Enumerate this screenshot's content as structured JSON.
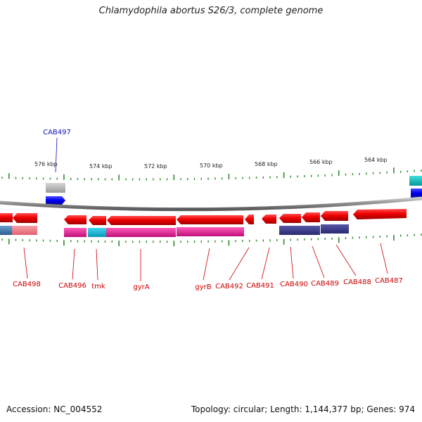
{
  "title": "Chlamydophila abortus S26/3, complete genome",
  "footer": {
    "accession": "Accession: NC_004552",
    "summary": "Topology: circular; Length: 1,144,377 bp; Genes: 974"
  },
  "colors": {
    "forward_gene": "#0000ee",
    "reverse_gene": "#ee0000",
    "backbone": "#888888",
    "tick": "#2e8b2e",
    "reverse_feature": "#e0209a",
    "forward_feature_dark": "#3a3a8a",
    "feature_cyan": "#10b8d8",
    "feature_blue": "#3878b0",
    "feature_gray": "#b4b4b4",
    "feature_pink": "#f07080",
    "teal": "#10b8b8",
    "forward_label": "#1010c0",
    "reverse_label": "#cc0000"
  },
  "scale": {
    "ticks": [
      {
        "label": "576 kbp"
      },
      {
        "label": "574 kbp"
      },
      {
        "label": "572 kbp"
      },
      {
        "label": "570 kbp"
      },
      {
        "label": "568 kbp"
      },
      {
        "label": "566 kbp"
      },
      {
        "label": "564 kbp"
      }
    ]
  },
  "genes": {
    "forward": [
      {
        "name": "CAB497"
      }
    ],
    "reverse": [
      {
        "name": "CAB498"
      },
      {
        "name": "CAB496"
      },
      {
        "name": "tmk"
      },
      {
        "name": "gyrA"
      },
      {
        "name": "gyrB"
      },
      {
        "name": "CAB492"
      },
      {
        "name": "CAB491"
      },
      {
        "name": "CAB490"
      },
      {
        "name": "CAB489"
      },
      {
        "name": "CAB488"
      },
      {
        "name": "CAB487"
      }
    ]
  }
}
